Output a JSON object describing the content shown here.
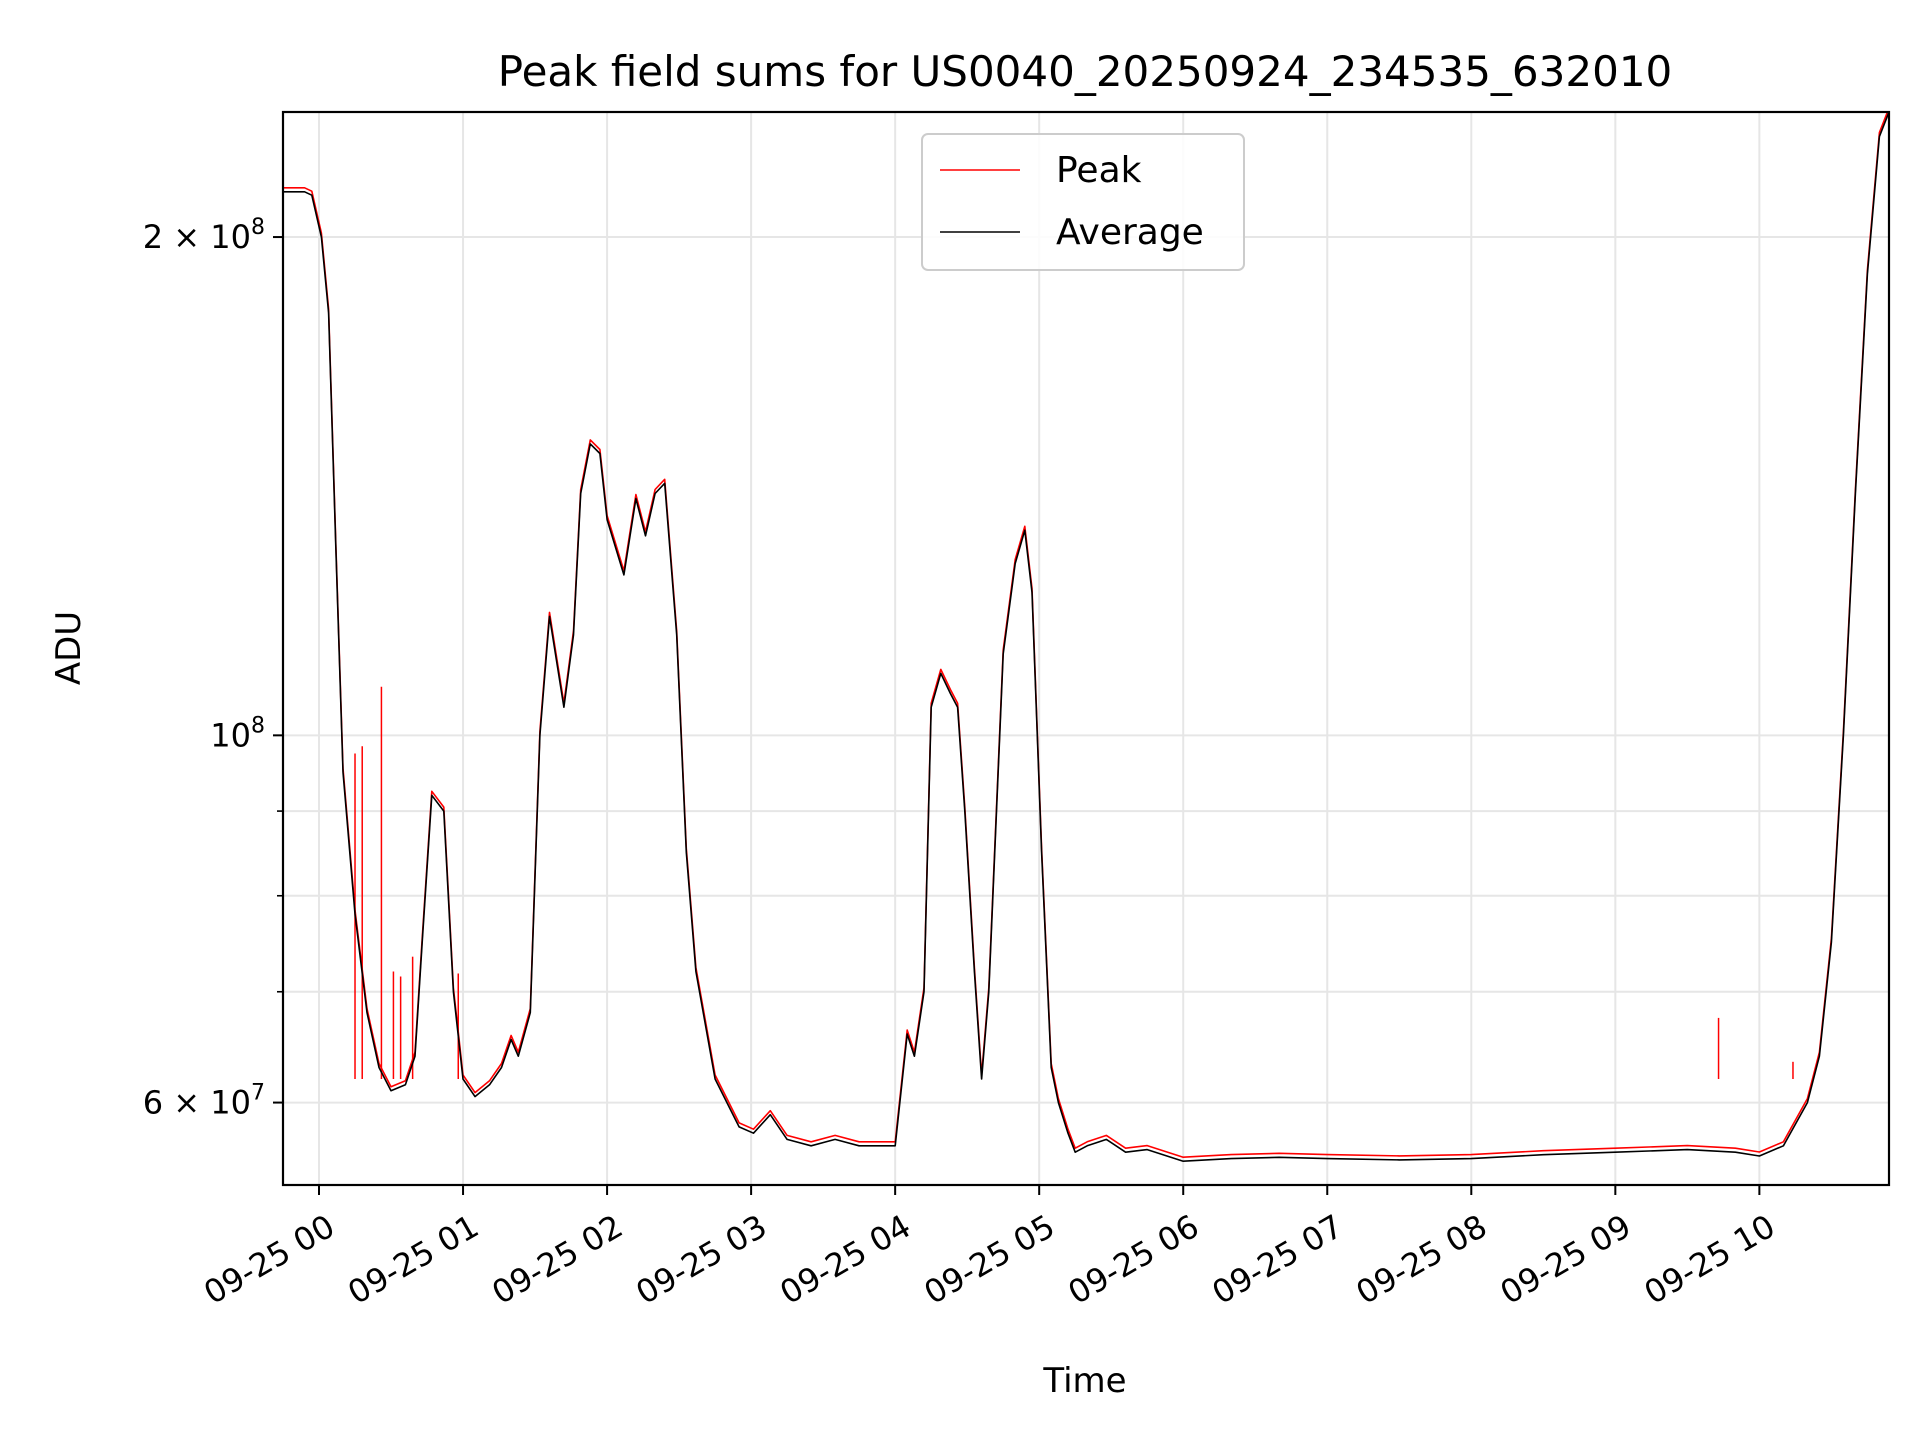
{
  "chart_data": {
    "type": "line",
    "title": "Peak field sums for US0040_20250924_234535_632010",
    "xlabel": "Time",
    "ylabel": "ADU",
    "yscale": "log",
    "ylim": [
      53500000,
      238000000
    ],
    "xlim": [
      "2025-09-24 23:45",
      "2025-09-25 10:54"
    ],
    "grid": true,
    "legend_position": "top-center",
    "x_ticks": [
      {
        "at": "2025-09-25 00:00",
        "label": "09-25 00"
      },
      {
        "at": "2025-09-25 01:00",
        "label": "09-25 01"
      },
      {
        "at": "2025-09-25 02:00",
        "label": "09-25 02"
      },
      {
        "at": "2025-09-25 03:00",
        "label": "09-25 03"
      },
      {
        "at": "2025-09-25 04:00",
        "label": "09-25 04"
      },
      {
        "at": "2025-09-25 05:00",
        "label": "09-25 05"
      },
      {
        "at": "2025-09-25 06:00",
        "label": "09-25 06"
      },
      {
        "at": "2025-09-25 07:00",
        "label": "09-25 07"
      },
      {
        "at": "2025-09-25 08:00",
        "label": "09-25 08"
      },
      {
        "at": "2025-09-25 09:00",
        "label": "09-25 09"
      },
      {
        "at": "2025-09-25 10:00",
        "label": "09-25 10"
      }
    ],
    "y_major_ticks": [
      {
        "value": 60000000,
        "mantissa": "6",
        "exponent": "7"
      },
      {
        "value": 100000000,
        "mantissa": "",
        "exponent": "8"
      },
      {
        "value": 200000000,
        "mantissa": "2",
        "exponent": "8"
      }
    ],
    "y_minor_ticks": [
      70000000,
      80000000,
      90000000
    ],
    "series": [
      {
        "name": "Peak",
        "color": "#ff0000",
        "spikes": [
          {
            "x": "2025-09-25 00:15",
            "y": 97500000
          },
          {
            "x": "2025-09-25 00:18",
            "y": 98500000
          },
          {
            "x": "2025-09-25 00:26",
            "y": 107000000
          },
          {
            "x": "2025-09-25 00:31",
            "y": 72000000
          },
          {
            "x": "2025-09-25 00:34",
            "y": 71500000
          },
          {
            "x": "2025-09-25 00:39",
            "y": 73500000
          },
          {
            "x": "2025-09-25 00:58",
            "y": 71800000
          },
          {
            "x": "2025-09-25 09:43",
            "y": 67500000
          },
          {
            "x": "2025-09-25 10:14",
            "y": 63500000
          }
        ]
      },
      {
        "name": "Average",
        "color": "#000000",
        "x": [
          "2025-09-24 23:45",
          "2025-09-24 23:54",
          "2025-09-24 23:57",
          "2025-09-25 00:01",
          "2025-09-25 00:04",
          "2025-09-25 00:07",
          "2025-09-25 00:10",
          "2025-09-25 00:15",
          "2025-09-25 00:20",
          "2025-09-25 00:25",
          "2025-09-25 00:30",
          "2025-09-25 00:36",
          "2025-09-25 00:40",
          "2025-09-25 00:43",
          "2025-09-25 00:47",
          "2025-09-25 00:52",
          "2025-09-25 00:56",
          "2025-09-25 01:00",
          "2025-09-25 01:05",
          "2025-09-25 01:11",
          "2025-09-25 01:16",
          "2025-09-25 01:20",
          "2025-09-25 01:23",
          "2025-09-25 01:28",
          "2025-09-25 01:32",
          "2025-09-25 01:36",
          "2025-09-25 01:42",
          "2025-09-25 01:46",
          "2025-09-25 01:49",
          "2025-09-25 01:53",
          "2025-09-25 01:57",
          "2025-09-25 02:00",
          "2025-09-25 02:07",
          "2025-09-25 02:12",
          "2025-09-25 02:16",
          "2025-09-25 02:20",
          "2025-09-25 02:24",
          "2025-09-25 02:29",
          "2025-09-25 02:33",
          "2025-09-25 02:37",
          "2025-09-25 02:45",
          "2025-09-25 02:55",
          "2025-09-25 03:01",
          "2025-09-25 03:08",
          "2025-09-25 03:15",
          "2025-09-25 03:25",
          "2025-09-25 03:35",
          "2025-09-25 03:45",
          "2025-09-25 04:00",
          "2025-09-25 04:05",
          "2025-09-25 04:08",
          "2025-09-25 04:12",
          "2025-09-25 04:15",
          "2025-09-25 04:19",
          "2025-09-25 04:23",
          "2025-09-25 04:26",
          "2025-09-25 04:29",
          "2025-09-25 04:33",
          "2025-09-25 04:36",
          "2025-09-25 04:39",
          "2025-09-25 04:45",
          "2025-09-25 04:50",
          "2025-09-25 04:54",
          "2025-09-25 04:57",
          "2025-09-25 05:01",
          "2025-09-25 05:05",
          "2025-09-25 05:08",
          "2025-09-25 05:12",
          "2025-09-25 05:15",
          "2025-09-25 05:20",
          "2025-09-25 05:28",
          "2025-09-25 05:36",
          "2025-09-25 05:45",
          "2025-09-25 06:00",
          "2025-09-25 06:20",
          "2025-09-25 06:40",
          "2025-09-25 07:00",
          "2025-09-25 07:30",
          "2025-09-25 08:00",
          "2025-09-25 08:30",
          "2025-09-25 09:00",
          "2025-09-25 09:30",
          "2025-09-25 09:50",
          "2025-09-25 10:00",
          "2025-09-25 10:10",
          "2025-09-25 10:20",
          "2025-09-25 10:25",
          "2025-09-25 10:30",
          "2025-09-25 10:35",
          "2025-09-25 10:40",
          "2025-09-25 10:45",
          "2025-09-25 10:50",
          "2025-09-25 10:54"
        ],
        "y": [
          213000000,
          213000000,
          212000000,
          200000000,
          180000000,
          130000000,
          95000000,
          78000000,
          68000000,
          63000000,
          61000000,
          61500000,
          64000000,
          75000000,
          92000000,
          90000000,
          70000000,
          62000000,
          60500000,
          61500000,
          63000000,
          65500000,
          64000000,
          68000000,
          100000000,
          118000000,
          104000000,
          115000000,
          140000000,
          150000000,
          148000000,
          135000000,
          125000000,
          139000000,
          132000000,
          140000000,
          142000000,
          115000000,
          85000000,
          72000000,
          62000000,
          58000000,
          57500000,
          59000000,
          57000000,
          56500000,
          57000000,
          56500000,
          56500000,
          66000000,
          64000000,
          70000000,
          104000000,
          109000000,
          106000000,
          104000000,
          90000000,
          72000000,
          62000000,
          70000000,
          112000000,
          127000000,
          133000000,
          122000000,
          85000000,
          63000000,
          60000000,
          57500000,
          56000000,
          56500000,
          57000000,
          56000000,
          56200000,
          55300000,
          55500000,
          55600000,
          55500000,
          55400000,
          55500000,
          55800000,
          56000000,
          56200000,
          56000000,
          55700000,
          56500000,
          60000000,
          64000000,
          75000000,
          100000000,
          140000000,
          190000000,
          230000000,
          238000000
        ]
      }
    ]
  }
}
